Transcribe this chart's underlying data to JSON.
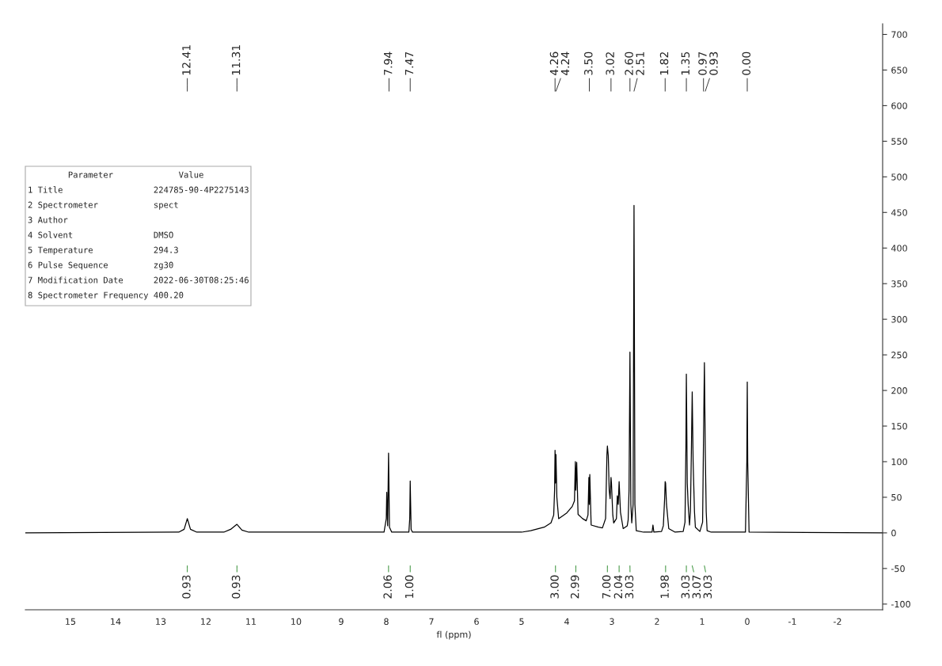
{
  "chart_data": {
    "type": "line",
    "xlabel": "fl (ppm)",
    "xlim": [
      16,
      -3
    ],
    "ylim": [
      -108,
      715
    ],
    "xticks": [
      15,
      14,
      13,
      12,
      11,
      10,
      9,
      8,
      7,
      6,
      5,
      4,
      3,
      2,
      1,
      0,
      -1,
      -2
    ],
    "yticks": [
      -100,
      -50,
      0,
      50,
      100,
      150,
      200,
      250,
      300,
      350,
      400,
      450,
      500,
      550,
      600,
      650,
      700
    ],
    "grid": false,
    "series": [
      {
        "color": "#000000",
        "x": [
          16,
          12.6,
          12.48,
          12.41,
          12.34,
          12.2,
          11.6,
          11.45,
          11.31,
          11.2,
          11.05,
          8.05,
          8.0,
          7.99,
          7.97,
          7.95,
          7.93,
          7.88,
          7.5,
          7.48,
          7.47,
          7.45,
          7.42,
          5.0,
          4.8,
          4.5,
          4.35,
          4.29,
          4.27,
          4.26,
          4.25,
          4.24,
          4.22,
          4.18,
          4.0,
          3.88,
          3.83,
          3.81,
          3.8,
          3.78,
          3.75,
          3.65,
          3.57,
          3.53,
          3.51,
          3.5,
          3.49,
          3.46,
          3.3,
          3.21,
          3.14,
          3.11,
          3.1,
          3.08,
          3.06,
          3.04,
          3.02,
          3.01,
          2.98,
          2.96,
          2.9,
          2.88,
          2.86,
          2.84,
          2.81,
          2.75,
          2.66,
          2.64,
          2.62,
          2.6,
          2.58,
          2.56,
          2.53,
          2.51,
          2.49,
          2.46,
          2.3,
          2.11,
          2.09,
          2.07,
          1.9,
          1.86,
          1.83,
          1.82,
          1.81,
          1.79,
          1.74,
          1.6,
          1.42,
          1.38,
          1.36,
          1.35,
          1.33,
          1.31,
          1.28,
          1.26,
          1.24,
          1.22,
          1.2,
          1.17,
          1.15,
          1.05,
          0.99,
          0.97,
          0.95,
          0.93,
          0.91,
          0.89,
          0.8,
          0.04,
          0.01,
          0.0,
          -0.01,
          -0.04,
          -3
        ],
        "values": [
          0,
          1,
          5,
          20,
          5,
          1,
          1,
          5,
          12,
          4,
          1,
          1,
          20,
          57,
          10,
          112,
          8,
          1,
          1,
          20,
          73,
          5,
          1,
          1,
          3,
          8,
          14,
          25,
          60,
          116,
          70,
          110,
          50,
          20,
          28,
          37,
          45,
          100,
          60,
          99,
          26,
          20,
          17,
          25,
          78,
          40,
          82,
          11,
          8,
          7,
          20,
          110,
          122,
          108,
          60,
          48,
          78,
          70,
          25,
          14,
          20,
          52,
          40,
          72,
          29,
          6,
          10,
          18,
          60,
          254,
          40,
          14,
          40,
          460,
          40,
          3,
          1,
          1,
          11,
          1,
          2,
          10,
          50,
          72,
          70,
          40,
          6,
          1,
          2,
          15,
          120,
          223,
          70,
          40,
          11,
          30,
          108,
          198,
          100,
          30,
          8,
          2,
          15,
          130,
          239,
          112,
          30,
          3,
          1,
          1,
          100,
          212,
          100,
          1,
          0
        ]
      }
    ],
    "annotations": [
      {
        "text": "12.41",
        "x": 12.41
      },
      {
        "text": "11.31",
        "x": 11.31
      },
      {
        "text": "7.94",
        "x": 7.94
      },
      {
        "text": "7.47",
        "x": 7.47
      },
      {
        "text": "4.26",
        "x": 4.26
      },
      {
        "text": "4.24",
        "x": 4.24
      },
      {
        "text": "3.50",
        "x": 3.5
      },
      {
        "text": "3.02",
        "x": 3.02
      },
      {
        "text": "2.60",
        "x": 2.6
      },
      {
        "text": "2.51",
        "x": 2.51
      },
      {
        "text": "1.82",
        "x": 1.82
      },
      {
        "text": "1.35",
        "x": 1.35
      },
      {
        "text": "0.97",
        "x": 0.97
      },
      {
        "text": "0.93",
        "x": 0.93
      },
      {
        "text": "0.00",
        "x": 0.0
      },
      "        Parameter             Value",
      "1 Title                  224785-90-4P2275143",
      "2 Spectrometer           spect",
      "3 Author",
      "4 Solvent                DMSO",
      "5 Temperature            294.3",
      "6 Pulse Sequence         zg30",
      "7 Modification Date      2022-06-30T08:25:46",
      "8 Spectrometer Frequency 400.20",
      {
        "text": "0.93",
        "x": 12.41
      },
      {
        "text": "0.93",
        "x": 11.31
      },
      {
        "text": "2.06",
        "x": 7.95
      },
      {
        "text": "1.00",
        "x": 7.47
      },
      {
        "text": "3.00",
        "x": 4.25
      },
      {
        "text": "2.99",
        "x": 3.8
      },
      {
        "text": "7.00",
        "x": 3.1
      },
      {
        "text": "2.04",
        "x": 2.84
      },
      {
        "text": "3.03",
        "x": 2.6
      },
      {
        "text": "1.98",
        "x": 1.81
      },
      {
        "text": "3.03",
        "x": 1.35
      },
      {
        "text": "3.07",
        "x": 1.22
      },
      {
        "text": "3.03",
        "x": 0.95
      }
    ]
  }
}
